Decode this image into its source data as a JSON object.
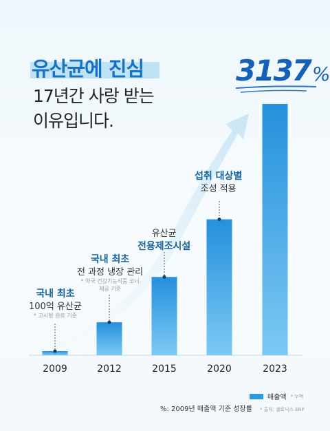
{
  "headline": "유산균에 진심",
  "subhead_line1": "17년간 사랑 받는",
  "subhead_line2": "이유입니다.",
  "growth_value": "3137",
  "growth_unit": "%",
  "annotations": [
    {
      "title": "국내 최초",
      "text": "100억 유산균",
      "foot": "* 고시형 원료 기준"
    },
    {
      "title": "국내 최초",
      "text": "전 과정 냉장 관리",
      "foot": "* 약국 건강기능식품 코너",
      "foot2": "제공 기준"
    },
    {
      "title": "전용제조시설",
      "text": "유산균"
    },
    {
      "title": "섭취 대상별",
      "text": "조성 적용"
    }
  ],
  "legend_label": "매출액",
  "legend_note": "* 누적",
  "footnote": "%: 2009년 매출액 기준 성장률",
  "source": "* 출처: 셀로닉스 ERP",
  "colors": {
    "bar_top": "#2590dc",
    "bar_bottom": "#8fd3f5",
    "title_blue": "#15659f",
    "arrow": "#d6ebf7"
  },
  "chart_data": {
    "type": "bar",
    "categories": [
      "2009",
      "2012",
      "2015",
      "2020",
      "2023"
    ],
    "values": [
      1,
      8,
      19,
      33,
      61
    ],
    "ylim": [
      0,
      62
    ],
    "grid": false
  }
}
